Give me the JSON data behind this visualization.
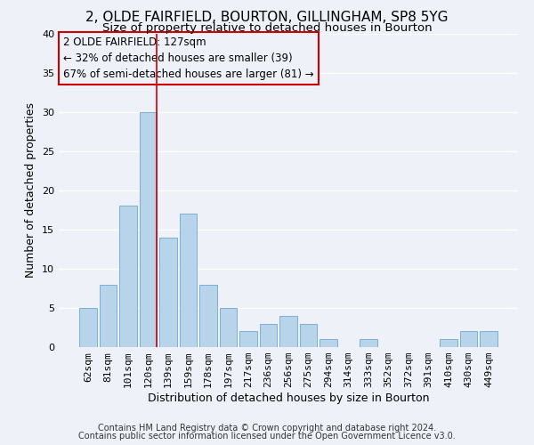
{
  "title": "2, OLDE FAIRFIELD, BOURTON, GILLINGHAM, SP8 5YG",
  "subtitle": "Size of property relative to detached houses in Bourton",
  "xlabel": "Distribution of detached houses by size in Bourton",
  "ylabel": "Number of detached properties",
  "bar_labels": [
    "62sqm",
    "81sqm",
    "101sqm",
    "120sqm",
    "139sqm",
    "159sqm",
    "178sqm",
    "197sqm",
    "217sqm",
    "236sqm",
    "256sqm",
    "275sqm",
    "294sqm",
    "314sqm",
    "333sqm",
    "352sqm",
    "372sqm",
    "391sqm",
    "410sqm",
    "430sqm",
    "449sqm"
  ],
  "bar_values": [
    5,
    8,
    18,
    30,
    14,
    17,
    8,
    5,
    2,
    3,
    4,
    3,
    1,
    0,
    1,
    0,
    0,
    0,
    1,
    2,
    2
  ],
  "bar_color": "#b8d4ea",
  "bar_edge_color": "#7aafd4",
  "vline_x_index": 3,
  "vline_color": "#cc0000",
  "ylim": [
    0,
    40
  ],
  "yticks": [
    0,
    5,
    10,
    15,
    20,
    25,
    30,
    35,
    40
  ],
  "annotation_text": "2 OLDE FAIRFIELD: 127sqm\n← 32% of detached houses are smaller (39)\n67% of semi-detached houses are larger (81) →",
  "annotation_box_edge": "#cc0000",
  "footer1": "Contains HM Land Registry data © Crown copyright and database right 2024.",
  "footer2": "Contains public sector information licensed under the Open Government Licence v3.0.",
  "background_color": "#eef2f8",
  "grid_color": "#ffffff",
  "title_fontsize": 11,
  "subtitle_fontsize": 9.5,
  "axis_label_fontsize": 9,
  "tick_fontsize": 8,
  "annotation_fontsize": 8.5,
  "footer_fontsize": 7
}
